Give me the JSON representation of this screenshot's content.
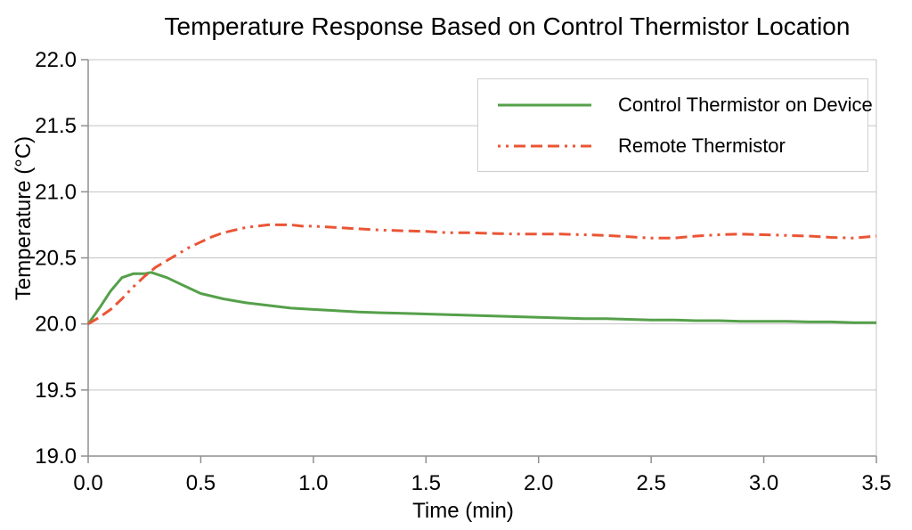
{
  "chart_data": {
    "type": "line",
    "title": "Temperature Response Based on Control Thermistor Location",
    "xlabel": "Time (min)",
    "ylabel": "Temperature (°C)",
    "xlim": [
      0.0,
      3.5
    ],
    "ylim": [
      19.0,
      22.0
    ],
    "x_ticks": [
      0.0,
      0.5,
      1.0,
      1.5,
      2.0,
      2.5,
      3.0,
      3.5
    ],
    "y_ticks": [
      19.0,
      19.5,
      20.0,
      20.5,
      21.0,
      21.5,
      22.0
    ],
    "grid": "horizontal-only",
    "legend_position": "top-right-inside",
    "series": [
      {
        "name": "Control Thermistor on Device",
        "color": "#55a04a",
        "line_style": "solid",
        "x": [
          0.0,
          0.05,
          0.1,
          0.15,
          0.2,
          0.25,
          0.28,
          0.35,
          0.4,
          0.45,
          0.5,
          0.55,
          0.6,
          0.7,
          0.8,
          0.9,
          1.0,
          1.1,
          1.2,
          1.3,
          1.4,
          1.5,
          1.6,
          1.7,
          1.8,
          1.9,
          2.0,
          2.1,
          2.2,
          2.3,
          2.4,
          2.5,
          2.6,
          2.7,
          2.8,
          2.9,
          3.0,
          3.1,
          3.2,
          3.3,
          3.4,
          3.5
        ],
        "y": [
          20.0,
          20.12,
          20.25,
          20.35,
          20.38,
          20.38,
          20.39,
          20.35,
          20.31,
          20.27,
          20.23,
          20.21,
          20.19,
          20.16,
          20.14,
          20.12,
          20.11,
          20.1,
          20.09,
          20.085,
          20.08,
          20.075,
          20.07,
          20.065,
          20.06,
          20.055,
          20.05,
          20.045,
          20.04,
          20.04,
          20.035,
          20.03,
          20.03,
          20.025,
          20.025,
          20.02,
          20.02,
          20.02,
          20.015,
          20.015,
          20.01,
          20.01
        ]
      },
      {
        "name": "Remote Thermistor",
        "color": "#ea5535",
        "line_style": "dash-dot-dot",
        "x": [
          0.0,
          0.05,
          0.1,
          0.15,
          0.2,
          0.25,
          0.3,
          0.35,
          0.4,
          0.45,
          0.5,
          0.55,
          0.6,
          0.65,
          0.7,
          0.75,
          0.8,
          0.85,
          0.9,
          0.95,
          1.0,
          1.1,
          1.2,
          1.3,
          1.4,
          1.5,
          1.6,
          1.7,
          1.8,
          1.9,
          2.0,
          2.1,
          2.2,
          2.3,
          2.4,
          2.5,
          2.6,
          2.7,
          2.8,
          2.9,
          3.0,
          3.1,
          3.2,
          3.3,
          3.4,
          3.5
        ],
        "y": [
          20.0,
          20.05,
          20.11,
          20.19,
          20.28,
          20.36,
          20.43,
          20.48,
          20.53,
          20.58,
          20.62,
          20.66,
          20.69,
          20.71,
          20.73,
          20.74,
          20.75,
          20.75,
          20.75,
          20.74,
          20.74,
          20.73,
          20.72,
          20.71,
          20.705,
          20.7,
          20.69,
          20.69,
          20.685,
          20.68,
          20.68,
          20.68,
          20.675,
          20.67,
          20.66,
          20.65,
          20.65,
          20.665,
          20.675,
          20.68,
          20.675,
          20.67,
          20.665,
          20.655,
          20.65,
          20.665
        ]
      }
    ]
  },
  "colors": {
    "grid": "#c4c4c4",
    "axis": "#8f8f8f",
    "text": "#000000",
    "legend_border": "#cfcfcf",
    "legend_background": "#ffffff"
  }
}
